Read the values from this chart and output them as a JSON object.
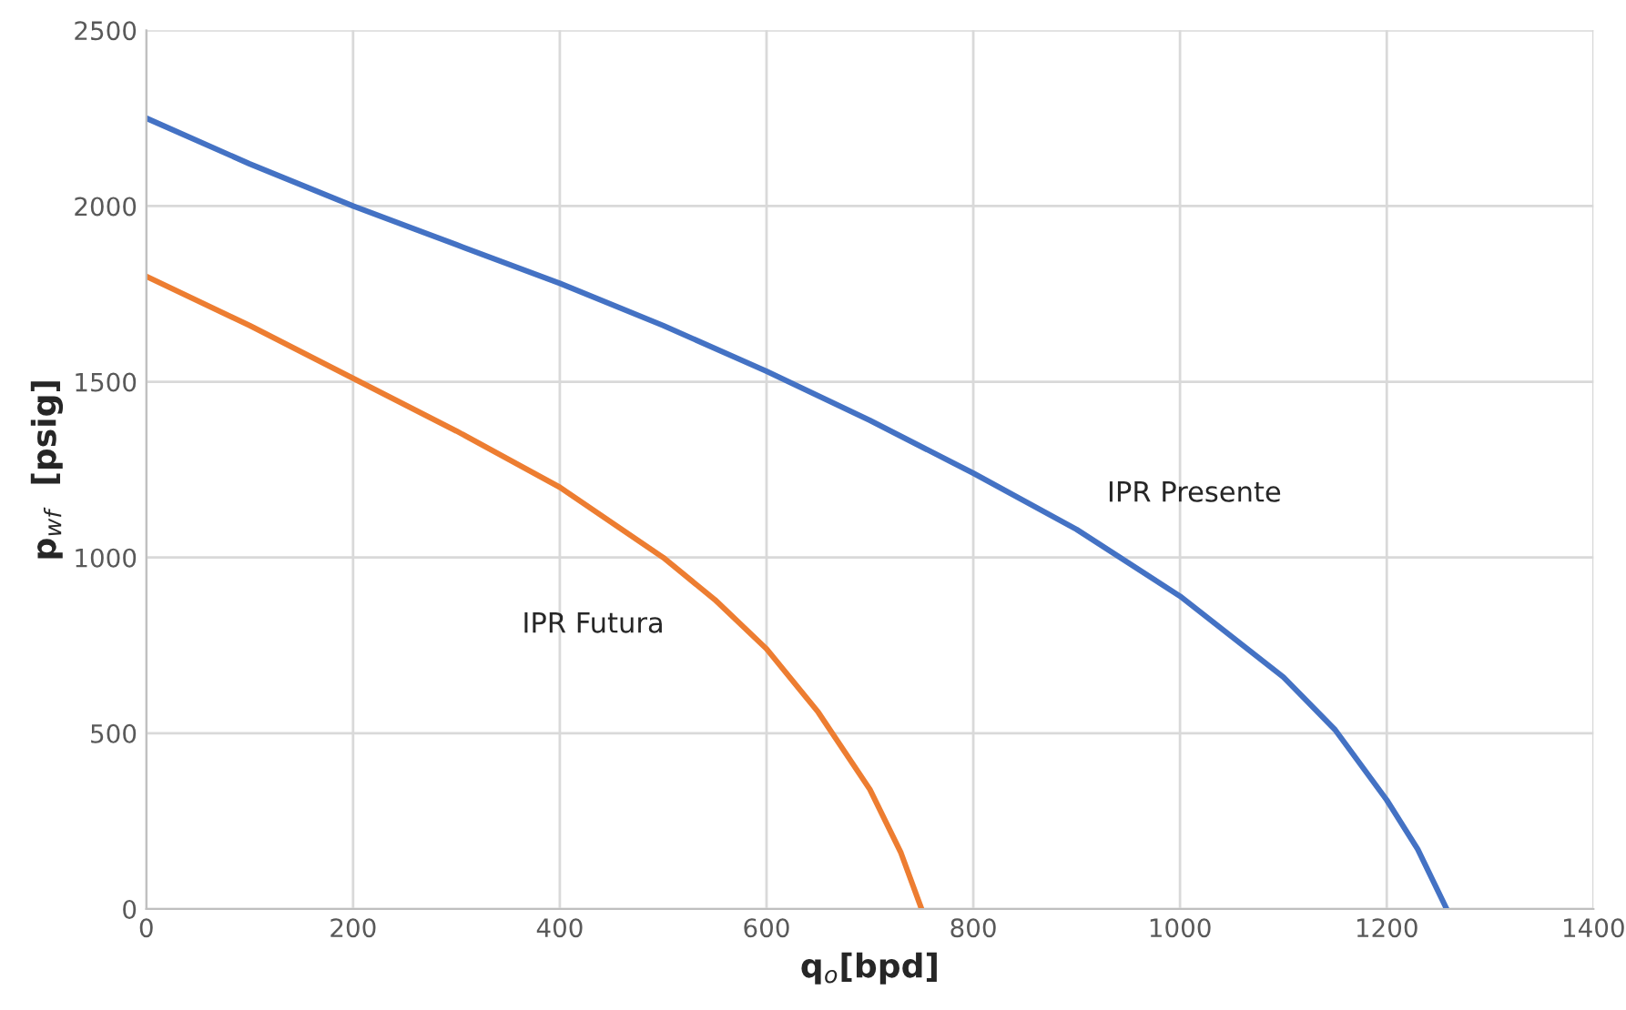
{
  "chart_data": {
    "type": "line",
    "xlabel": "q$_{o}$[bpd]",
    "ylabel": "p$_{wf}$  [psig]",
    "series": [
      {
        "name": "IPR Presente",
        "color": "#4472c4",
        "x": [
          0,
          100,
          200,
          300,
          400,
          500,
          600,
          700,
          800,
          900,
          1000,
          1100,
          1150,
          1200,
          1230,
          1258
        ],
        "values": [
          2250,
          2120,
          2000,
          1890,
          1780,
          1660,
          1530,
          1390,
          1240,
          1080,
          890,
          660,
          510,
          310,
          170,
          0
        ]
      },
      {
        "name": "IPR Futura",
        "color": "#ed7d31",
        "x": [
          0,
          100,
          200,
          300,
          400,
          500,
          550,
          600,
          650,
          700,
          730,
          750
        ],
        "values": [
          1800,
          1660,
          1510,
          1360,
          1200,
          1000,
          880,
          740,
          560,
          340,
          160,
          0
        ]
      }
    ],
    "xlim": [
      0,
      1400
    ],
    "xticks": [
      0,
      200,
      400,
      600,
      800,
      1000,
      1200,
      1400
    ],
    "ylim": [
      0,
      2500
    ],
    "yticks": [
      0,
      500,
      1000,
      1500,
      2000,
      2500
    ],
    "grid": true,
    "marker": "none",
    "line_style": "solid"
  }
}
